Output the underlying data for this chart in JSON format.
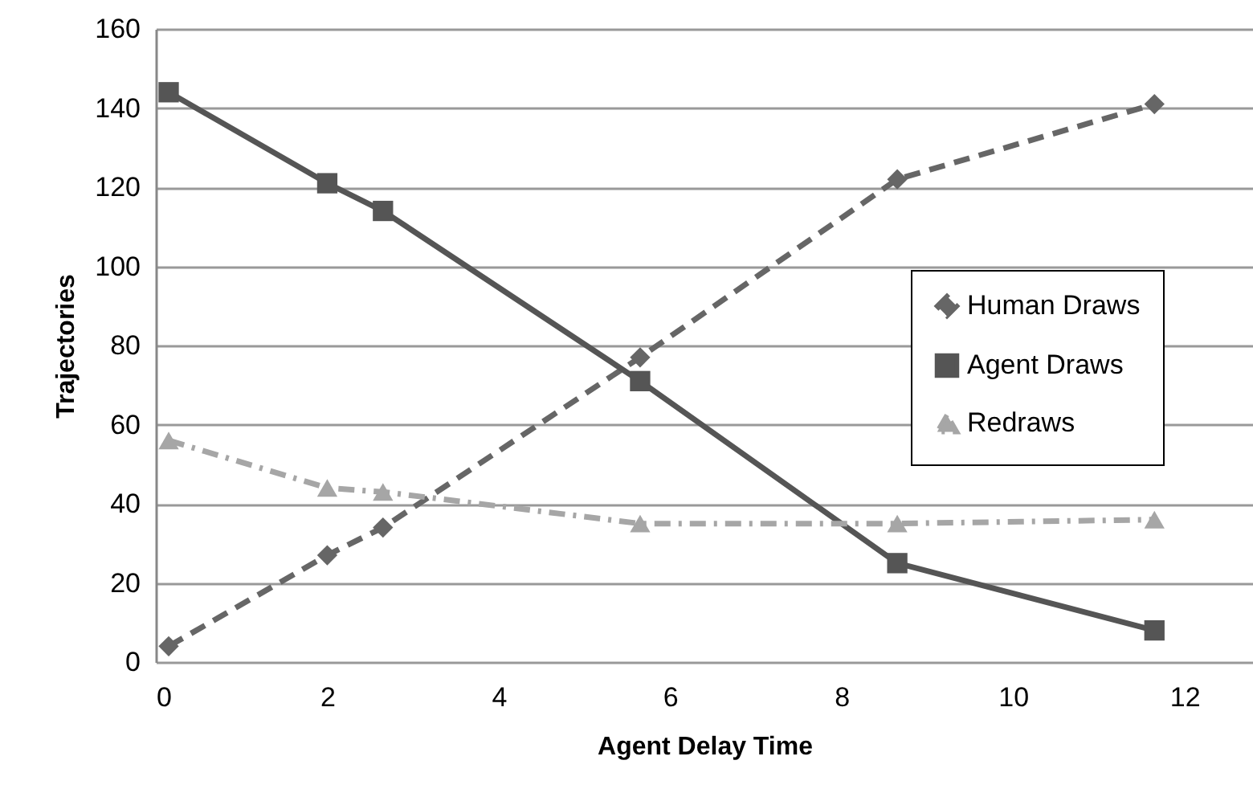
{
  "chart_data": {
    "type": "line",
    "xlabel": "Agent Delay Time",
    "ylabel": "Trajectories",
    "x": [
      0.15,
      2.0,
      2.65,
      5.65,
      8.65,
      11.65
    ],
    "series": [
      {
        "name": "Human Draws",
        "color": "#666666",
        "values": [
          4,
          27,
          34,
          77,
          122,
          141
        ],
        "line_style": "dashed",
        "marker": "diamond"
      },
      {
        "name": "Agent Draws",
        "color": "#555555",
        "values": [
          144,
          121,
          114,
          71,
          25,
          8
        ],
        "line_style": "solid",
        "marker": "square"
      },
      {
        "name": "Redraws",
        "color": "#a6a6a6",
        "values": [
          56,
          44,
          43,
          35,
          35,
          36
        ],
        "line_style": "dashdot",
        "marker": "triangle"
      }
    ],
    "xlim": [
      0,
      12.8
    ],
    "xticks": [
      0,
      2,
      4,
      6,
      8,
      10,
      12
    ],
    "ylim": [
      0,
      160
    ],
    "yticks": [
      0,
      20,
      40,
      60,
      80,
      100,
      120,
      140,
      160
    ],
    "grid": "y",
    "legend": "right"
  }
}
